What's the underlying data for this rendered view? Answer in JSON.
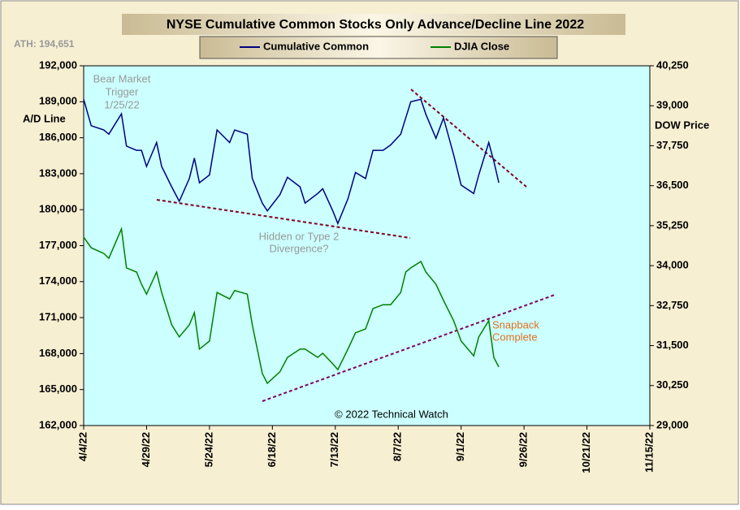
{
  "chart_data": {
    "type": "line",
    "title": "NYSE Cumulative  Common Stocks Only Advance/Decline  Line 2022",
    "ath_note": "ATH: 194,651",
    "ylabel": "A/D Line",
    "y2label": "DOW  Price",
    "annotations": {
      "bear": [
        "Bear Market",
        "Trigger",
        "1/25/22"
      ],
      "divergence": [
        "Hidden  or  Type 2",
        "Divergence?"
      ],
      "snapback": [
        "Snapback",
        "Complete"
      ],
      "credit": "© 2022 Technical Watch"
    },
    "x": [
      "2022-04-04",
      "2022-04-07",
      "2022-04-12",
      "2022-04-14",
      "2022-04-19",
      "2022-04-21",
      "2022-04-25",
      "2022-04-27",
      "2022-04-29",
      "2022-05-03",
      "2022-05-05",
      "2022-05-09",
      "2022-05-12",
      "2022-05-16",
      "2022-05-18",
      "2022-05-20",
      "2022-05-24",
      "2022-05-27",
      "2022-06-01",
      "2022-06-03",
      "2022-06-08",
      "2022-06-10",
      "2022-06-14",
      "2022-06-16",
      "2022-06-21",
      "2022-06-24",
      "2022-06-29",
      "2022-07-01",
      "2022-07-06",
      "2022-07-08",
      "2022-07-12",
      "2022-07-14",
      "2022-07-18",
      "2022-07-21",
      "2022-07-25",
      "2022-07-28",
      "2022-08-01",
      "2022-08-04",
      "2022-08-08",
      "2022-08-10",
      "2022-08-12",
      "2022-08-16",
      "2022-08-18",
      "2022-08-22",
      "2022-08-25",
      "2022-08-29",
      "2022-09-01",
      "2022-09-06",
      "2022-09-08",
      "2022-09-12",
      "2022-09-14",
      "2022-09-16"
    ],
    "series": [
      {
        "name": "Cumulative Common",
        "color": "#000080",
        "axis": "y",
        "values": [
          189200,
          187000,
          186650,
          186300,
          188000,
          185300,
          184950,
          184950,
          183600,
          185600,
          183600,
          181900,
          180700,
          182600,
          184300,
          182250,
          182900,
          186650,
          185600,
          186650,
          186300,
          182600,
          180550,
          179900,
          181250,
          182700,
          181900,
          180550,
          181350,
          181750,
          179900,
          178850,
          180900,
          183100,
          182600,
          184950,
          184950,
          185400,
          186300,
          187650,
          189000,
          189200,
          187950,
          185950,
          187650,
          184600,
          182050,
          181350,
          182900,
          185600,
          184050,
          182250
        ]
      },
      {
        "name": "DJIA Close",
        "color": "#008000",
        "axis": "y2",
        "values": [
          34890,
          34560,
          34380,
          34230,
          35150,
          33930,
          33800,
          33420,
          33110,
          33800,
          33160,
          32150,
          31770,
          32150,
          32530,
          31390,
          31640,
          33160,
          32960,
          33220,
          33110,
          32150,
          30630,
          30320,
          30680,
          31130,
          31390,
          31390,
          31130,
          31260,
          30930,
          30750,
          31390,
          31900,
          32020,
          32660,
          32780,
          32780,
          33160,
          33800,
          33930,
          34130,
          33800,
          33420,
          32910,
          32280,
          31640,
          31180,
          31770,
          32280,
          31130,
          30830
        ]
      }
    ],
    "xlim": [
      "2022-04-04",
      "2022-11-15"
    ],
    "xticks": [
      {
        "value": "2022-04-04",
        "label": "4/4/22"
      },
      {
        "value": "2022-04-29",
        "label": "4/29/22"
      },
      {
        "value": "2022-05-24",
        "label": "5/24/22"
      },
      {
        "value": "2022-06-18",
        "label": "6/18/22"
      },
      {
        "value": "2022-07-13",
        "label": "7/13/22"
      },
      {
        "value": "2022-08-07",
        "label": "8/7/22"
      },
      {
        "value": "2022-09-01",
        "label": "9/1/22"
      },
      {
        "value": "2022-09-26",
        "label": "9/26/22"
      },
      {
        "value": "2022-10-21",
        "label": "10/21/22"
      },
      {
        "value": "2022-11-15",
        "label": "11/15/22"
      }
    ],
    "ylim": [
      162000,
      192000
    ],
    "yticks": [
      {
        "value": 162000,
        "label": "162,000"
      },
      {
        "value": 165000,
        "label": "165,000"
      },
      {
        "value": 168000,
        "label": "168,000"
      },
      {
        "value": 171000,
        "label": "171,000"
      },
      {
        "value": 174000,
        "label": "174,000"
      },
      {
        "value": 177000,
        "label": "177,000"
      },
      {
        "value": 180000,
        "label": "180,000"
      },
      {
        "value": 183000,
        "label": "183,000"
      },
      {
        "value": 186000,
        "label": "186,000"
      },
      {
        "value": 189000,
        "label": "189,000"
      },
      {
        "value": 192000,
        "label": "192,000"
      }
    ],
    "y2lim": [
      29000,
      40250
    ],
    "y2ticks": [
      {
        "value": 29000,
        "label": "29,000"
      },
      {
        "value": 30250,
        "label": "30,250"
      },
      {
        "value": 31500,
        "label": "31,500"
      },
      {
        "value": 32750,
        "label": "32,750"
      },
      {
        "value": 34000,
        "label": "34,000"
      },
      {
        "value": 35250,
        "label": "35,250"
      },
      {
        "value": 36500,
        "label": "36,500"
      },
      {
        "value": 37750,
        "label": "37,750"
      },
      {
        "value": 39000,
        "label": "39,000"
      },
      {
        "value": 40250,
        "label": "40,250"
      }
    ]
  }
}
